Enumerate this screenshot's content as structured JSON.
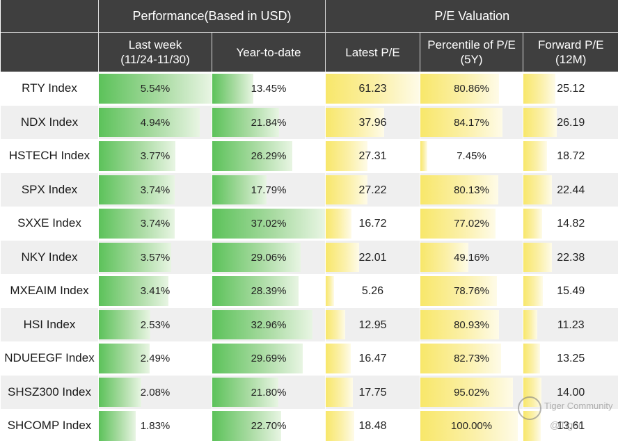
{
  "headers": {
    "group_performance": "Performance(Based in USD)",
    "group_valuation": "P/E Valuation",
    "col_last_week": "Last week",
    "col_last_week_sub": "(11/24-11/30)",
    "col_ytd": "Year-to-date",
    "col_latest_pe": "Latest P/E",
    "col_percentile": "Percentile of P/E",
    "col_percentile_sub": "(5Y)",
    "col_forward_pe": "Forward P/E",
    "col_forward_pe_sub": "(12M)"
  },
  "chart_data": {
    "type": "table",
    "columns": [
      "",
      "Last week (11/24-11/30)",
      "Year-to-date",
      "Latest P/E",
      "Percentile of P/E (5Y)",
      "Forward P/E (12M)"
    ],
    "rows": [
      {
        "name": "RTY Index",
        "last_week": "5.54%",
        "ytd": "13.45%",
        "latest_pe": "61.23",
        "percentile": "80.86%",
        "forward_pe": "25.12"
      },
      {
        "name": "NDX Index",
        "last_week": "4.94%",
        "ytd": "21.84%",
        "latest_pe": "37.96",
        "percentile": "84.17%",
        "forward_pe": "26.19"
      },
      {
        "name": "HSTECH Index",
        "last_week": "3.77%",
        "ytd": "26.29%",
        "latest_pe": "27.31",
        "percentile": "7.45%",
        "forward_pe": "18.72"
      },
      {
        "name": "SPX Index",
        "last_week": "3.74%",
        "ytd": "17.79%",
        "latest_pe": "27.22",
        "percentile": "80.13%",
        "forward_pe": "22.44"
      },
      {
        "name": "SXXE Index",
        "last_week": "3.74%",
        "ytd": "37.02%",
        "latest_pe": "16.72",
        "percentile": "77.02%",
        "forward_pe": "14.82"
      },
      {
        "name": "NKY Index",
        "last_week": "3.57%",
        "ytd": "29.06%",
        "latest_pe": "22.01",
        "percentile": "49.16%",
        "forward_pe": "22.38"
      },
      {
        "name": "MXEAIM Index",
        "last_week": "3.41%",
        "ytd": "28.39%",
        "latest_pe": "5.26",
        "percentile": "78.76%",
        "forward_pe": "15.49"
      },
      {
        "name": "HSI Index",
        "last_week": "2.53%",
        "ytd": "32.96%",
        "latest_pe": "12.95",
        "percentile": "80.93%",
        "forward_pe": "11.23"
      },
      {
        "name": "NDUEEGF Index",
        "last_week": "2.49%",
        "ytd": "29.69%",
        "latest_pe": "16.47",
        "percentile": "82.73%",
        "forward_pe": "13.25"
      },
      {
        "name": "SHSZ300 Index",
        "last_week": "2.08%",
        "ytd": "21.80%",
        "latest_pe": "17.75",
        "percentile": "95.02%",
        "forward_pe": "14.00"
      },
      {
        "name": "SHCOMP Index",
        "last_week": "1.83%",
        "ytd": "22.70%",
        "latest_pe": "18.48",
        "percentile": "100.00%",
        "forward_pe": "13.61"
      }
    ],
    "bar_colors": {
      "performance": "#5cc25a",
      "valuation": "#f8e76a"
    }
  },
  "watermark": {
    "brand": "Tiger Community",
    "handle": "@Tiger"
  }
}
